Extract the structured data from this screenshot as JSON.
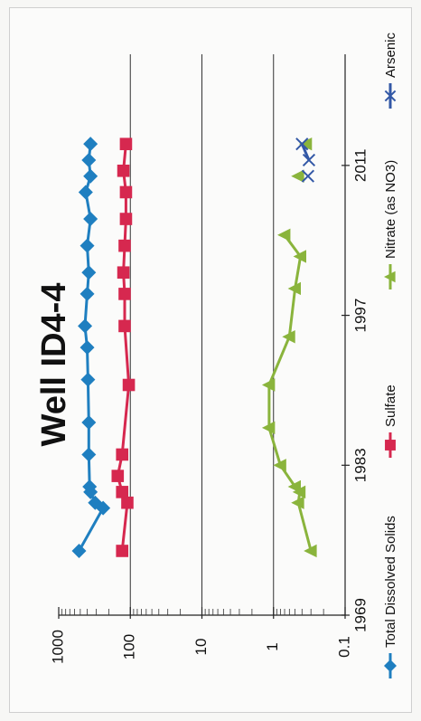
{
  "chart_data": {
    "type": "line",
    "title": "Well ID4-4",
    "y_scale": "log",
    "ylim": [
      0.1,
      1000
    ],
    "y_ticks": [
      "1000",
      "100",
      "10",
      "1",
      "0.1"
    ],
    "y_tick_values": [
      1000,
      100,
      10,
      1,
      0.1
    ],
    "xlim": [
      1969,
      2018
    ],
    "x_ticks": [
      "1969",
      "1983",
      "1997",
      "2011"
    ],
    "x_tick_values": [
      1969,
      1983,
      1997,
      2011
    ],
    "grid": "major horizontal gridlines",
    "legend_position": "bottom",
    "series": [
      {
        "name": "Total Dissolved Solids",
        "color": "#1f7fc0",
        "marker": "diamond",
        "x": [
          1975,
          1979,
          1979.5,
          1980.5,
          1981,
          1984,
          1987,
          1991,
          1994,
          1996,
          1999,
          2001,
          2003.5,
          2006,
          2008.5,
          2010,
          2011.5,
          2013
        ],
        "y": [
          520,
          240,
          310,
          360,
          370,
          380,
          380,
          390,
          400,
          430,
          400,
          380,
          400,
          360,
          420,
          360,
          380,
          360
        ]
      },
      {
        "name": "Sulfate",
        "color": "#d6284f",
        "marker": "square",
        "x": [
          1975,
          1979.5,
          1980.5,
          1982,
          1984,
          1990.5,
          1996,
          1999,
          2001,
          2003.5,
          2006,
          2008.5,
          2010.5,
          2013
        ],
        "y": [
          130,
          110,
          130,
          150,
          130,
          105,
          120,
          120,
          125,
          120,
          115,
          115,
          125,
          115
        ]
      },
      {
        "name": "Nitrate (as NO3)",
        "color": "#8ab43c",
        "marker": "triangle",
        "x": [
          1975,
          1979.5,
          1980.5,
          1981,
          1983,
          1986.5,
          1990.5,
          1995,
          1999.5,
          2002.5,
          2004.5,
          2010,
          2013
        ],
        "y": [
          0.3,
          0.45,
          0.43,
          0.5,
          0.8,
          1.15,
          1.15,
          0.6,
          0.5,
          0.42,
          0.7,
          0.45,
          0.35
        ]
      },
      {
        "name": "Arsenic",
        "color": "#3358a6",
        "marker": "x",
        "x": [
          2010,
          2011.5,
          2013
        ],
        "y": [
          0.33,
          0.32,
          0.4
        ]
      }
    ]
  }
}
